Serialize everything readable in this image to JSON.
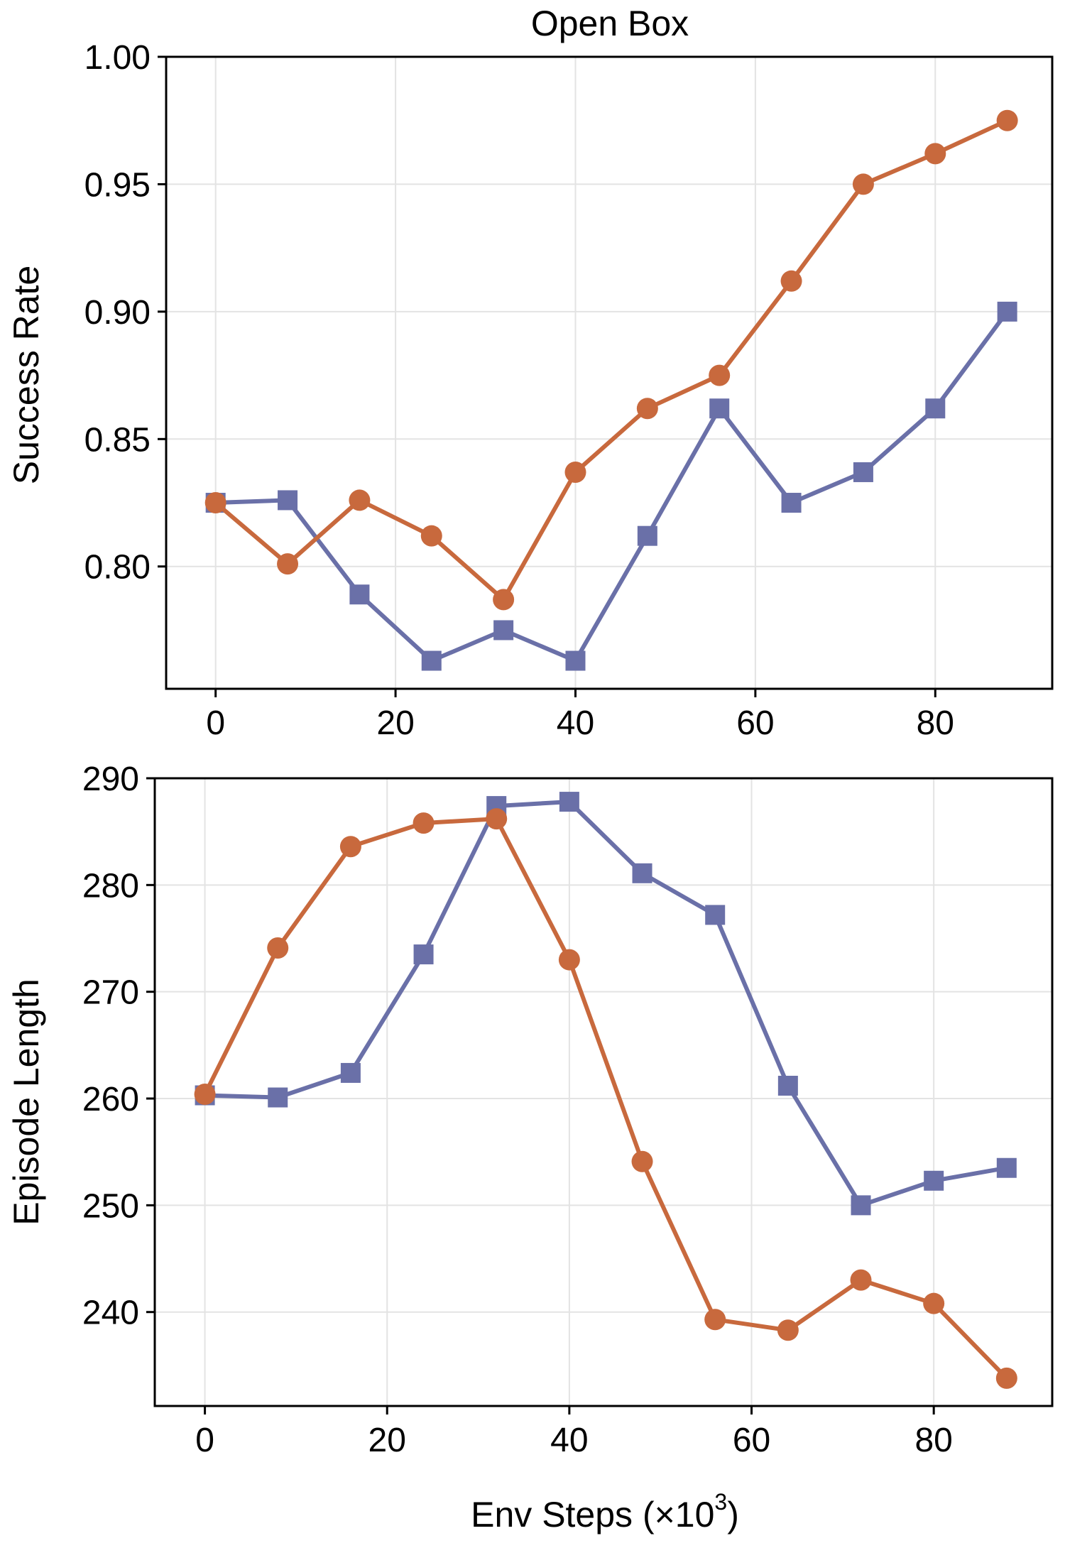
{
  "figure": {
    "xlabel_main": "Env Steps (×10",
    "xlabel_exp": "3",
    "xlabel_close": ")"
  },
  "colors": {
    "series_orange": "#c8693d",
    "series_blue": "#6a70a8",
    "grid": "#e3e3e3",
    "axis": "#000000"
  },
  "chart_data": [
    {
      "type": "line",
      "title": "Open Box",
      "xlabel": "",
      "ylabel": "Success Rate",
      "xlim": [
        -5.5,
        93
      ],
      "ylim": [
        0.752,
        1.0
      ],
      "xticks": [
        0,
        20,
        40,
        60,
        80
      ],
      "xtick_labels": [
        "0",
        "20",
        "40",
        "60",
        "80"
      ],
      "yticks": [
        0.8,
        0.85,
        0.9,
        0.95,
        1.0
      ],
      "ytick_labels": [
        "0.80",
        "0.85",
        "0.90",
        "0.95",
        "1.00"
      ],
      "grid": true,
      "series": [
        {
          "marker": "square",
          "color": "#6a70a8",
          "x": [
            0,
            8,
            16,
            24,
            32,
            40,
            48,
            56,
            64,
            72,
            80,
            88
          ],
          "y": [
            0.825,
            0.826,
            0.789,
            0.763,
            0.775,
            0.763,
            0.812,
            0.862,
            0.825,
            0.837,
            0.862,
            0.9
          ]
        },
        {
          "marker": "circle",
          "color": "#c8693d",
          "x": [
            0,
            8,
            16,
            24,
            32,
            40,
            48,
            56,
            64,
            72,
            80,
            88
          ],
          "y": [
            0.825,
            0.801,
            0.826,
            0.812,
            0.787,
            0.837,
            0.862,
            0.875,
            0.912,
            0.95,
            0.962,
            0.975
          ]
        }
      ]
    },
    {
      "type": "line",
      "title": "",
      "xlabel": "Env Steps (×10^3)",
      "ylabel": "Episode Length",
      "xlim": [
        -5.5,
        93
      ],
      "ylim": [
        231.2,
        290
      ],
      "xticks": [
        0,
        20,
        40,
        60,
        80
      ],
      "xtick_labels": [
        "0",
        "20",
        "40",
        "60",
        "80"
      ],
      "yticks": [
        240,
        250,
        260,
        270,
        280,
        290
      ],
      "ytick_labels": [
        "240",
        "250",
        "260",
        "270",
        "280",
        "290"
      ],
      "grid": true,
      "series": [
        {
          "marker": "square",
          "color": "#6a70a8",
          "x": [
            0,
            8,
            16,
            24,
            32,
            40,
            48,
            56,
            64,
            72,
            80,
            88
          ],
          "y": [
            260.3,
            260.1,
            262.4,
            273.5,
            287.4,
            287.8,
            281.1,
            277.2,
            261.2,
            250.0,
            252.3,
            253.5
          ]
        },
        {
          "marker": "circle",
          "color": "#c8693d",
          "x": [
            0,
            8,
            16,
            24,
            32,
            40,
            48,
            56,
            64,
            72,
            80,
            88
          ],
          "y": [
            260.4,
            274.1,
            283.6,
            285.8,
            286.2,
            273.0,
            254.1,
            239.3,
            238.3,
            243.0,
            240.8,
            233.8
          ]
        }
      ]
    }
  ]
}
